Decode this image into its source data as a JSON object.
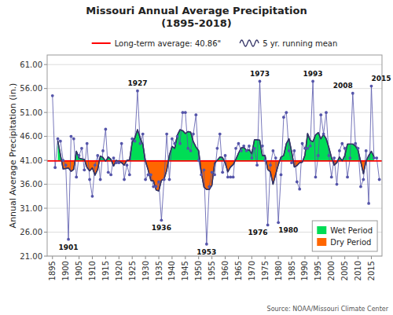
{
  "chart_data": {
    "type": "line",
    "title": "Missouri Annual Average Precipitation\n(1895-2018)",
    "y_label": "Annual Average Precipitation (in.)",
    "x": [
      1895,
      1896,
      1897,
      1898,
      1899,
      1900,
      1901,
      1902,
      1903,
      1904,
      1905,
      1906,
      1907,
      1908,
      1909,
      1910,
      1911,
      1912,
      1913,
      1914,
      1915,
      1916,
      1917,
      1918,
      1919,
      1920,
      1921,
      1922,
      1923,
      1924,
      1925,
      1926,
      1927,
      1928,
      1929,
      1930,
      1931,
      1932,
      1933,
      1934,
      1935,
      1936,
      1937,
      1938,
      1939,
      1940,
      1941,
      1942,
      1943,
      1944,
      1945,
      1946,
      1947,
      1948,
      1949,
      1950,
      1951,
      1952,
      1953,
      1954,
      1955,
      1956,
      1957,
      1958,
      1959,
      1960,
      1961,
      1962,
      1963,
      1964,
      1965,
      1966,
      1967,
      1968,
      1969,
      1970,
      1971,
      1972,
      1973,
      1974,
      1975,
      1976,
      1977,
      1978,
      1979,
      1980,
      1981,
      1982,
      1983,
      1984,
      1985,
      1986,
      1987,
      1988,
      1989,
      1990,
      1991,
      1992,
      1993,
      1994,
      1995,
      1996,
      1997,
      1998,
      1999,
      2000,
      2001,
      2002,
      2003,
      2004,
      2005,
      2006,
      2007,
      2008,
      2009,
      2010,
      2011,
      2012,
      2013,
      2014,
      2015,
      2016,
      2017,
      2018
    ],
    "xlim": [
      1893,
      2019
    ],
    "xticks": [
      1895,
      1900,
      1905,
      1910,
      1915,
      1920,
      1925,
      1930,
      1935,
      1940,
      1945,
      1950,
      1955,
      1960,
      1965,
      1970,
      1975,
      1980,
      1985,
      1990,
      1995,
      2000,
      2005,
      2010,
      2015
    ],
    "ylim": [
      21.0,
      63.0
    ],
    "yticks": [
      {
        "value": 21.0,
        "label": "21.00"
      },
      {
        "value": 26.0,
        "label": "26.00"
      },
      {
        "value": 31.0,
        "label": "31.00"
      },
      {
        "value": 36.0,
        "label": "36.00"
      },
      {
        "value": 41.0,
        "label": "41.00"
      },
      {
        "value": 46.0,
        "label": "46.00"
      },
      {
        "value": 51.0,
        "label": "51.00"
      },
      {
        "value": 56.0,
        "label": "56.00"
      },
      {
        "value": 61.0,
        "label": "61.00"
      }
    ],
    "grid": true,
    "legend": "lower right",
    "series": [
      {
        "color": "#5555AA",
        "marker": "circle",
        "values": [
          54.5,
          39.5,
          45.5,
          45.0,
          41.0,
          40.0,
          24.5,
          46.0,
          45.5,
          37.5,
          42.0,
          43.5,
          39.0,
          44.5,
          37.0,
          33.5,
          40.0,
          42.0,
          37.0,
          43.0,
          47.5,
          38.5,
          38.0,
          41.5,
          40.5,
          40.5,
          44.5,
          37.0,
          40.0,
          38.0,
          45.5,
          45.0,
          55.5,
          44.5,
          46.5,
          37.0,
          38.0,
          38.0,
          35.5,
          35.5,
          36.5,
          28.5,
          37.0,
          46.5,
          37.0,
          45.5,
          44.5,
          46.0,
          44.5,
          51.0,
          51.0,
          43.5,
          43.0,
          46.5,
          50.5,
          41.0,
          38.0,
          39.0,
          23.5,
          35.5,
          38.5,
          38.0,
          43.5,
          46.5,
          38.5,
          42.0,
          37.5,
          37.5,
          37.5,
          43.5,
          44.5,
          43.0,
          44.0,
          43.0,
          44.0,
          41.5,
          43.5,
          40.0,
          57.5,
          44.0,
          41.0,
          27.5,
          40.0,
          43.0,
          41.5,
          28.0,
          38.0,
          50.0,
          51.0,
          43.0,
          40.5,
          43.0,
          36.5,
          35.0,
          44.5,
          43.5,
          43.5,
          44.0,
          57.5,
          37.5,
          42.0,
          50.5,
          46.5,
          51.0,
          42.0,
          37.5,
          41.5,
          36.0,
          43.0,
          44.5,
          43.5,
          37.5,
          41.5,
          55.0,
          44.5,
          43.5,
          35.5,
          37.0,
          43.0,
          32.0,
          56.5,
          41.5,
          41.5,
          37.0
        ]
      },
      {
        "name": "5 yr. running mean",
        "color": "#333366",
        "values": [
          null,
          null,
          45.1,
          42.2,
          39.2,
          39.3,
          39.4,
          38.7,
          39.1,
          42.9,
          41.5,
          41.3,
          41.2,
          39.5,
          38.8,
          39.4,
          37.9,
          39.1,
          41.9,
          41.6,
          40.8,
          41.7,
          41.2,
          39.8,
          41.0,
          40.8,
          40.5,
          40.0,
          41.0,
          41.1,
          44.8,
          45.7,
          47.4,
          45.7,
          44.3,
          40.8,
          39.0,
          36.8,
          36.7,
          34.8,
          34.6,
          36.8,
          37.1,
          38.9,
          42.1,
          43.9,
          43.5,
          46.3,
          47.4,
          47.2,
          46.6,
          47.0,
          46.9,
          44.9,
          43.8,
          43.0,
          38.4,
          35.4,
          34.9,
          34.9,
          35.8,
          40.4,
          41.0,
          41.7,
          41.6,
          40.4,
          38.6,
          39.6,
          40.1,
          41.2,
          42.5,
          43.6,
          43.7,
          43.1,
          43.2,
          42.4,
          45.3,
          45.3,
          45.2,
          42.0,
          42.0,
          39.1,
          38.6,
          36.0,
          38.1,
          40.1,
          41.7,
          42.0,
          44.5,
          45.5,
          42.8,
          39.6,
          39.9,
          40.5,
          40.6,
          42.1,
          46.6,
          45.2,
          44.9,
          46.3,
          46.8,
          45.5,
          46.4,
          45.5,
          43.7,
          41.6,
          40.0,
          40.5,
          41.7,
          40.9,
          42.0,
          44.4,
          44.4,
          44.4,
          44.0,
          43.1,
          40.7,
          38.2,
          40.8,
          42.0,
          42.9,
          41.7,
          null,
          null
        ]
      }
    ],
    "reference_line": {
      "name": "Long-term average: 40.86\"",
      "value": 40.86,
      "color": "#FF0000"
    },
    "fill": [
      {
        "name": "Wet Period",
        "color": "#00DD55"
      },
      {
        "name": "Dry Period",
        "color": "#FF6600"
      }
    ],
    "annotations": [
      {
        "text": "1901",
        "x": 1901
      },
      {
        "text": "1927",
        "x": 1927
      },
      {
        "text": "1936",
        "x": 1936
      },
      {
        "text": "1953",
        "x": 1953
      },
      {
        "text": "1973",
        "x": 1973
      },
      {
        "text": "1976",
        "x": 1976
      },
      {
        "text": "1980",
        "x": 1980
      },
      {
        "text": "1993",
        "x": 1993
      },
      {
        "text": "2008",
        "x": 2008
      },
      {
        "text": "2015",
        "x": 2015
      }
    ],
    "source": "Source: NOAA/Missouri Climate Center"
  }
}
